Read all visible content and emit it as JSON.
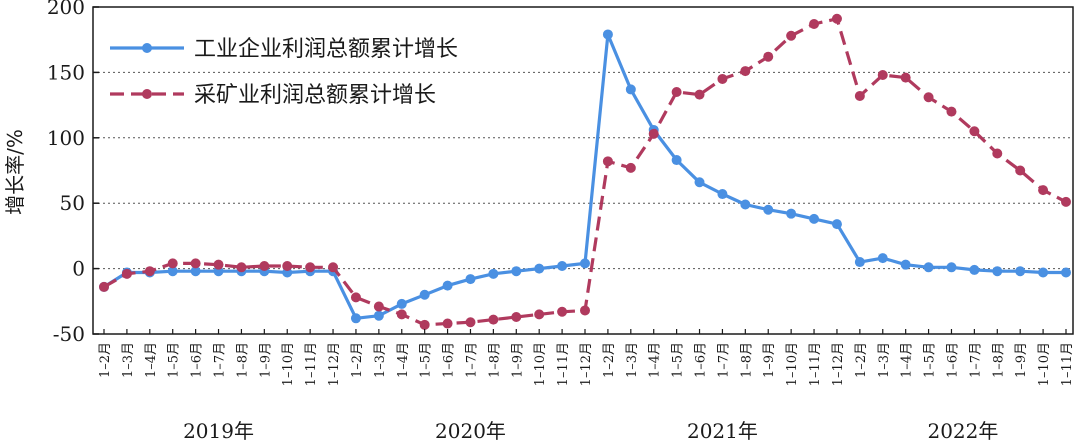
{
  "chart_data": {
    "type": "line",
    "ylabel": "增长率/%",
    "ylim": [
      -50,
      200
    ],
    "yticks": [
      -50,
      0,
      50,
      100,
      150,
      200
    ],
    "grid": "horizontal dotted at 0, 50, 100, 150",
    "legend_position": "top-left",
    "categories": [
      "1–2月",
      "1–3月",
      "1–4月",
      "1–5月",
      "1–6月",
      "1–7月",
      "1–8月",
      "1–9月",
      "1–10月",
      "1–11月",
      "1–12月",
      "1–2月",
      "1–3月",
      "1–4月",
      "1–5月",
      "1–6月",
      "1–7月",
      "1–8月",
      "1–9月",
      "1–10月",
      "1–11月",
      "1–12月",
      "1–2月",
      "1–3月",
      "1–4月",
      "1–5月",
      "1–6月",
      "1–7月",
      "1–8月",
      "1–9月",
      "1–10月",
      "1–11月",
      "1–12月",
      "1–2月",
      "1–3月",
      "1–4月",
      "1–5月",
      "1–6月",
      "1–7月",
      "1–8月",
      "1–9月",
      "1–10月",
      "1–11月"
    ],
    "year_groups": [
      {
        "label": "2019年",
        "start": 0,
        "end": 10
      },
      {
        "label": "2020年",
        "start": 11,
        "end": 21
      },
      {
        "label": "2021年",
        "start": 22,
        "end": 32
      },
      {
        "label": "2022年",
        "start": 33,
        "end": 42
      }
    ],
    "series": [
      {
        "name": "工业企业利润总额累计增长",
        "color": "#4a90e2",
        "style": "solid",
        "values": [
          -14,
          -3,
          -3,
          -2,
          -2,
          -2,
          -2,
          -2,
          -3,
          -2,
          -2,
          -38,
          -36,
          -27,
          -20,
          -13,
          -8,
          -4,
          -2,
          0,
          2,
          4,
          179,
          137,
          106,
          83,
          66,
          57,
          49,
          45,
          42,
          38,
          34,
          5,
          8,
          3,
          1,
          1,
          -1,
          -2,
          -2,
          -3,
          -3
        ]
      },
      {
        "name": "采矿业利润总额累计增长",
        "color": "#b03a5e",
        "style": "dashed",
        "values": [
          -14,
          -4,
          -2,
          4,
          4,
          3,
          1,
          2,
          2,
          1,
          1,
          -22,
          -29,
          -35,
          -43,
          -42,
          -41,
          -39,
          -37,
          -35,
          -33,
          -32,
          82,
          77,
          103,
          135,
          133,
          145,
          151,
          162,
          178,
          187,
          191,
          132,
          148,
          146,
          131,
          120,
          105,
          88,
          75,
          60,
          51
        ]
      }
    ]
  }
}
